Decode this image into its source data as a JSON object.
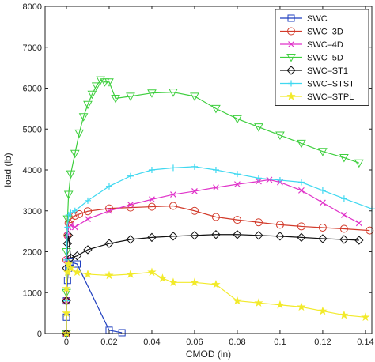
{
  "chart_data": {
    "type": "line",
    "xlabel": "CMOD (in)",
    "ylabel": "load (lb)",
    "xlim": [
      -0.01,
      0.143
    ],
    "ylim": [
      0,
      8000
    ],
    "xticks": [
      0,
      0.02,
      0.04,
      0.06,
      0.08,
      0.1,
      0.12,
      0.14
    ],
    "xtick_labels": [
      "0",
      "0.02",
      "0.04",
      "0.06",
      "0.08",
      "0.1",
      "0.12",
      "0.14"
    ],
    "yticks": [
      0,
      1000,
      2000,
      3000,
      4000,
      5000,
      6000,
      7000,
      8000
    ],
    "ytick_labels": [
      "0",
      "1000",
      "2000",
      "3000",
      "4000",
      "5000",
      "6000",
      "7000",
      "8000"
    ],
    "grid": false,
    "legend_position": "top-right",
    "series": [
      {
        "name": "SWC",
        "color": "#1f3fbf",
        "marker": "square",
        "x": [
          0,
          0,
          0,
          0.0005,
          0.001,
          0.0015,
          0.002,
          0.005,
          0.02,
          0.026
        ],
        "y": [
          0,
          400,
          800,
          1300,
          1600,
          1700,
          1750,
          1700,
          80,
          20
        ]
      },
      {
        "name": "SWC–3D",
        "color": "#d23a2a",
        "marker": "circle",
        "x": [
          0,
          0,
          0,
          0.0005,
          0.001,
          0.002,
          0.004,
          0.006,
          0.01,
          0.02,
          0.03,
          0.04,
          0.05,
          0.06,
          0.07,
          0.08,
          0.09,
          0.1,
          0.11,
          0.12,
          0.13,
          0.142
        ],
        "y": [
          0,
          800,
          1800,
          2400,
          2700,
          2800,
          2880,
          2920,
          2990,
          3060,
          3080,
          3100,
          3120,
          3000,
          2850,
          2780,
          2720,
          2660,
          2620,
          2590,
          2560,
          2520
        ]
      },
      {
        "name": "SWC–4D",
        "color": "#e033c9",
        "marker": "x",
        "x": [
          0,
          0,
          0,
          0.0005,
          0.001,
          0.002,
          0.004,
          0.01,
          0.02,
          0.03,
          0.04,
          0.05,
          0.06,
          0.07,
          0.08,
          0.09,
          0.095,
          0.1,
          0.11,
          0.12,
          0.13,
          0.137
        ],
        "y": [
          0,
          800,
          1800,
          2400,
          2600,
          2650,
          2600,
          2800,
          3000,
          3150,
          3280,
          3400,
          3480,
          3570,
          3650,
          3720,
          3760,
          3700,
          3500,
          3200,
          2900,
          2700
        ]
      },
      {
        "name": "SWC–5D",
        "color": "#3fcf3f",
        "marker": "triangle-down",
        "x": [
          0,
          0,
          0,
          0.0005,
          0.001,
          0.002,
          0.004,
          0.006,
          0.008,
          0.01,
          0.012,
          0.014,
          0.016,
          0.018,
          0.02,
          0.023,
          0.03,
          0.04,
          0.05,
          0.06,
          0.07,
          0.08,
          0.09,
          0.1,
          0.11,
          0.12,
          0.13,
          0.137
        ],
        "y": [
          0,
          1000,
          2000,
          2800,
          3400,
          3900,
          4400,
          4900,
          5300,
          5600,
          5850,
          6050,
          6200,
          6150,
          6150,
          5750,
          5800,
          5880,
          5900,
          5800,
          5500,
          5250,
          5050,
          4850,
          4650,
          4450,
          4300,
          4170
        ]
      },
      {
        "name": "SWC–ST1",
        "color": "#111111",
        "marker": "diamond",
        "x": [
          0,
          0,
          0,
          0.0005,
          0.001,
          0.002,
          0.005,
          0.01,
          0.02,
          0.03,
          0.04,
          0.05,
          0.06,
          0.07,
          0.08,
          0.09,
          0.1,
          0.11,
          0.12,
          0.13,
          0.137
        ],
        "y": [
          0,
          800,
          1600,
          2200,
          2400,
          1850,
          1900,
          2050,
          2200,
          2300,
          2350,
          2380,
          2400,
          2420,
          2420,
          2400,
          2380,
          2350,
          2320,
          2300,
          2280
        ]
      },
      {
        "name": "SWC–STST",
        "color": "#3fd8f0",
        "marker": "plus",
        "x": [
          0,
          0,
          0,
          0.0005,
          0.001,
          0.002,
          0.004,
          0.01,
          0.02,
          0.03,
          0.04,
          0.05,
          0.06,
          0.07,
          0.08,
          0.09,
          0.1,
          0.11,
          0.12,
          0.13,
          0.143
        ],
        "y": [
          0,
          800,
          1800,
          2600,
          2900,
          2950,
          3000,
          3250,
          3600,
          3850,
          4000,
          4050,
          4080,
          4000,
          3900,
          3800,
          3750,
          3700,
          3500,
          3300,
          3050
        ]
      },
      {
        "name": "SWC–STPL",
        "color": "#f2ea2a",
        "marker": "star",
        "x": [
          0,
          0,
          0,
          0.0005,
          0.001,
          0.002,
          0.005,
          0.01,
          0.02,
          0.03,
          0.04,
          0.045,
          0.05,
          0.06,
          0.07,
          0.08,
          0.09,
          0.1,
          0.11,
          0.12,
          0.13,
          0.14
        ],
        "y": [
          0,
          500,
          1100,
          1500,
          1700,
          1600,
          1500,
          1450,
          1420,
          1450,
          1500,
          1350,
          1250,
          1250,
          1200,
          800,
          750,
          700,
          650,
          550,
          450,
          400
        ]
      }
    ]
  }
}
